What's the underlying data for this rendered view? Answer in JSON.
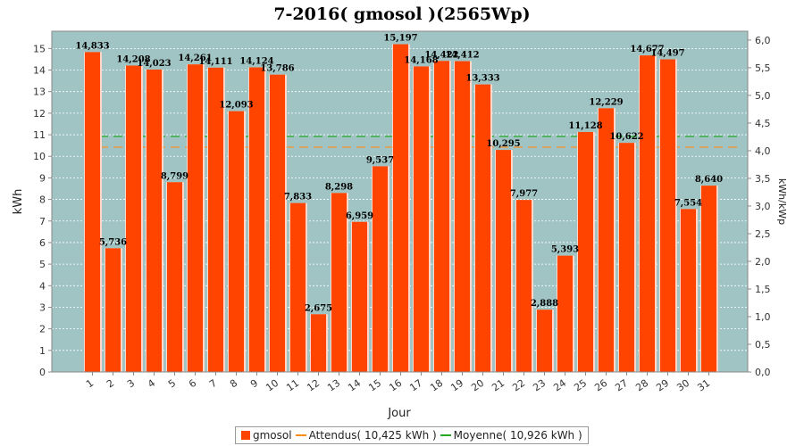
{
  "chart_data": {
    "type": "bar",
    "title": "7-2016( gmosol )(2565Wp)",
    "xlabel": "Jour",
    "ylabel": "kWh",
    "y2label": "kWh/kWp",
    "ylim": [
      0,
      15.8
    ],
    "y2lim": [
      0,
      6.16
    ],
    "yticks": [
      0,
      1,
      2,
      3,
      4,
      5,
      6,
      7,
      8,
      9,
      10,
      11,
      12,
      13,
      14,
      15
    ],
    "y2ticks": [
      "0,0",
      "0,5",
      "1,0",
      "1,5",
      "2,0",
      "2,5",
      "3,0",
      "3,5",
      "4,0",
      "4,5",
      "5,0",
      "5,5",
      "6,0"
    ],
    "categories": [
      "1",
      "2",
      "3",
      "4",
      "5",
      "6",
      "7",
      "8",
      "9",
      "10",
      "11",
      "12",
      "13",
      "14",
      "15",
      "16",
      "17",
      "18",
      "19",
      "20",
      "21",
      "22",
      "23",
      "24",
      "25",
      "26",
      "27",
      "28",
      "29",
      "30",
      "31"
    ],
    "series": [
      {
        "name": "gmosol",
        "color": "#ff4400",
        "values": [
          14.833,
          5.736,
          14.208,
          14.023,
          8.799,
          14.261,
          14.111,
          12.093,
          14.124,
          13.786,
          7.833,
          2.675,
          8.298,
          6.959,
          9.537,
          15.197,
          14.168,
          14.422,
          14.412,
          13.333,
          10.295,
          7.977,
          2.888,
          5.393,
          11.128,
          12.229,
          10.622,
          14.677,
          14.497,
          7.554,
          8.64
        ],
        "labels": [
          "14,833",
          "5,736",
          "14,208",
          "14,023",
          "8,799",
          "14,261",
          "14,111",
          "12,093",
          "14,124",
          "13,786",
          "7,833",
          "2,675",
          "8,298",
          "6,959",
          "9,537",
          "15,197",
          "14,168",
          "14,422",
          "14,412",
          "13,333",
          "10,295",
          "7,977",
          "2,888",
          "5,393",
          "11,128",
          "12,229",
          "10,622",
          "14,677",
          "14,497",
          "7,554",
          "8,640"
        ]
      }
    ],
    "reference_lines": [
      {
        "name": "Attendus( 10,425 kWh )",
        "value": 10.425,
        "color": "#ff8c1a",
        "style": "dashed"
      },
      {
        "name": "Moyenne( 10,926 kWh )",
        "value": 10.926,
        "color": "#22aa22",
        "style": "dashed"
      }
    ],
    "legend": {
      "position": "bottom-center"
    },
    "grid": true,
    "background": "#a0c4c4"
  },
  "legend_items": {
    "gmosol": "gmosol",
    "attendus": "Attendus( 10,425 kWh )",
    "moyenne": "Moyenne( 10,926 kWh )"
  }
}
